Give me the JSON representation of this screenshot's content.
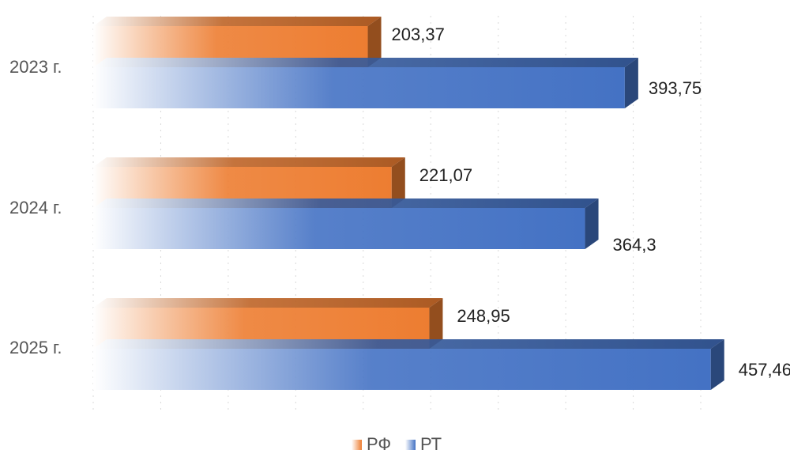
{
  "chart_data": {
    "type": "bar",
    "orientation": "horizontal",
    "style": "3d",
    "categories": [
      "2023 г.",
      "2024 г.",
      "2025 г."
    ],
    "series": [
      {
        "name": "РФ",
        "values": [
          203.37,
          221.07,
          248.95
        ],
        "labels": [
          "203,37",
          "221,07",
          "248,95"
        ],
        "color": "#ED7D31"
      },
      {
        "name": "РТ",
        "values": [
          393.75,
          364.3,
          457.46
        ],
        "labels": [
          "393,75",
          "364,3",
          "457,46"
        ],
        "color": "#4472C4"
      }
    ],
    "xlim": [
      0,
      450
    ],
    "grid": true,
    "legend_position": "bottom"
  }
}
